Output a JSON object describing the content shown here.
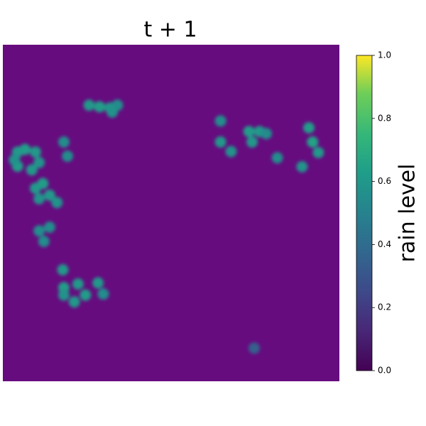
{
  "chart_data": {
    "type": "heatmap",
    "title": "t + 1",
    "colorbar_label": "rain level",
    "colormap": "viridis",
    "background_color": "#660c7f",
    "xlim": [
      0,
      64
    ],
    "ylim": [
      64,
      0
    ],
    "x": [
      16.4,
      18.4,
      20.4,
      21.8,
      20.8,
      2.8,
      4.2,
      6.2,
      6.9,
      5.5,
      2.8,
      2.2,
      11.6,
      12.3,
      6.2,
      7.6,
      8.9,
      10.3,
      6.9,
      6.9,
      8.9,
      7.8,
      11.4,
      11.6,
      14.3,
      15.7,
      13.6,
      11.6,
      18.1,
      19.1,
      41.4,
      41.4,
      43.4,
      46.8,
      48.8,
      47.4,
      50.1,
      52.2,
      56.9,
      58.2,
      58.9,
      60.0,
      47.8
    ],
    "y": [
      11.5,
      11.8,
      12.0,
      11.5,
      12.8,
      20.4,
      19.9,
      20.4,
      22.4,
      23.8,
      23.1,
      21.9,
      18.5,
      21.2,
      27.3,
      26.4,
      28.6,
      30.0,
      29.3,
      35.4,
      34.7,
      37.4,
      42.8,
      46.2,
      45.5,
      47.6,
      48.9,
      47.6,
      45.3,
      47.4,
      14.5,
      18.5,
      20.3,
      16.5,
      16.5,
      18.5,
      16.9,
      21.5,
      23.2,
      15.8,
      18.5,
      20.5,
      57.7
    ],
    "values": [
      0.6,
      0.62,
      0.6,
      0.55,
      0.58,
      0.6,
      0.62,
      0.6,
      0.58,
      0.6,
      0.62,
      0.58,
      0.55,
      0.55,
      0.6,
      0.62,
      0.6,
      0.58,
      0.58,
      0.55,
      0.55,
      0.55,
      0.6,
      0.62,
      0.6,
      0.62,
      0.6,
      0.58,
      0.6,
      0.55,
      0.55,
      0.6,
      0.58,
      0.62,
      0.6,
      0.6,
      0.55,
      0.55,
      0.58,
      0.62,
      0.65,
      0.6,
      0.35
    ],
    "clim": [
      0,
      1
    ],
    "cticks": [
      {
        "value": 0,
        "label": "0.0"
      },
      {
        "value": 0.2,
        "label": "0.2"
      },
      {
        "value": 0.4,
        "label": "0.4"
      },
      {
        "value": 0.6,
        "label": "0.6"
      },
      {
        "value": 0.8,
        "label": "0.8"
      },
      {
        "value": 1,
        "label": "1.0"
      }
    ]
  }
}
